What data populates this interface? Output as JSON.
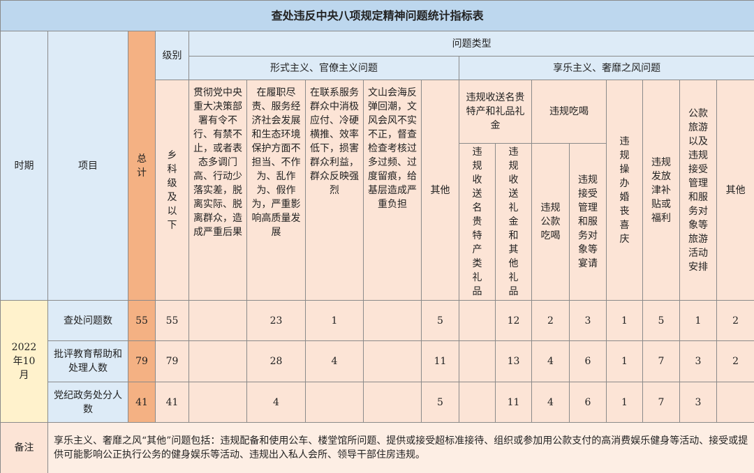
{
  "title": "查处违反中央八项规定精神问题统计指标表",
  "header": {
    "period": "时期",
    "item": "项目",
    "total": "总计",
    "level": "级别",
    "level_sub": "乡科级及以下",
    "problem_type": "问题类型",
    "formalism": "形式主义、官僚主义问题",
    "formalism_cols": [
      "贯彻党中央重大决策部署有令不行、有禁不止，或者表态多调门高、行动少落实差，脱离实际、脱离群众，造成严重后果",
      "在履职尽责、服务经济社会发展和生态环境保护方面不担当、不作为、乱作为、假作为，严重影响高质量发展",
      "在联系服务群众中消极应付、冷硬横推、效率低下，损害群众利益，群众反映强烈",
      "文山会海反弹回潮，文风会风不实不正，督查检查考核过多过频、过度留痕，给基层造成严重负担",
      "其他"
    ],
    "hedonism": "享乐主义、奢靡之风问题",
    "gift_group": "违规收送名贵特产和礼品礼金",
    "gift_cols": [
      "违规收送名贵特产类礼品",
      "违规收送礼金和其他礼品"
    ],
    "dining_group": "违规吃喝",
    "dining_cols": [
      "违规公款吃喝",
      "违规接受管理和服务对象等宴请"
    ],
    "other_cols": [
      "违规操办婚丧喜庆",
      "违规发放津补贴或福利",
      "公款旅游以及违规接受管理和服务对象等旅游活动安排",
      "其他"
    ]
  },
  "table": {
    "period": "2022年10月",
    "rows": [
      {
        "item": "查处问题数",
        "cells": [
          55,
          55,
          null,
          23,
          1,
          null,
          5,
          null,
          12,
          2,
          3,
          1,
          5,
          1,
          2
        ]
      },
      {
        "item": "批评教育帮助和处理人数",
        "cells": [
          79,
          79,
          null,
          28,
          4,
          null,
          11,
          null,
          13,
          4,
          6,
          1,
          7,
          3,
          2
        ]
      },
      {
        "item": "党纪政务处分人数",
        "cells": [
          41,
          41,
          null,
          4,
          null,
          null,
          5,
          null,
          11,
          4,
          6,
          1,
          7,
          3,
          null
        ]
      }
    ]
  },
  "note": {
    "label": "备注",
    "text": "享乐主义、奢靡之风“其他”问题包括：违规配备和使用公车、楼堂馆所问题、提供或接受超标准接待、组织或参加用公款支付的高消费娱乐健身等活动、接受或提供可能影响公正执行公务的健身娱乐等活动、违规出入私人会所、领导干部住房违规。"
  }
}
